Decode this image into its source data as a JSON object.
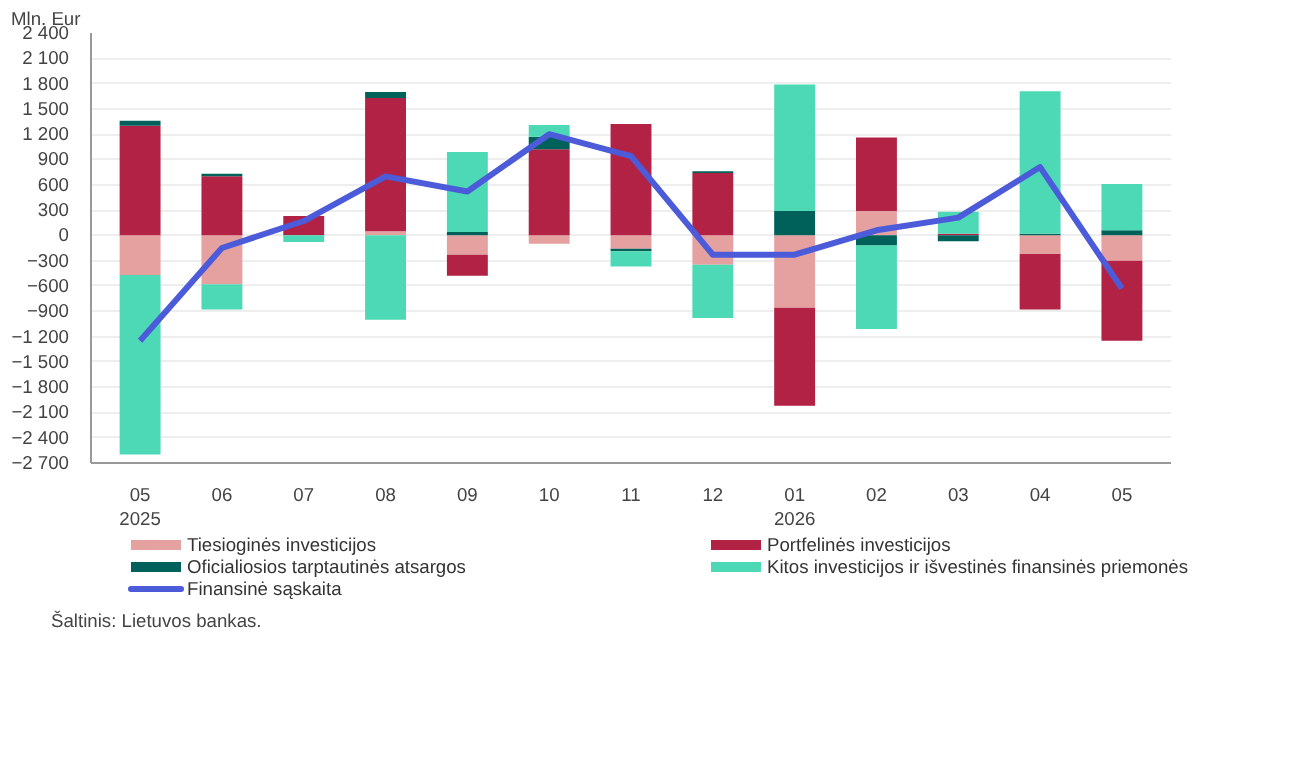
{
  "chart_data": {
    "type": "bar",
    "stacked": true,
    "ylabel": "Mln. Eur",
    "categories": [
      "05\n2025",
      "06",
      "07",
      "08",
      "09",
      "10",
      "11",
      "12",
      "01\n2026",
      "02",
      "03",
      "04",
      "05"
    ],
    "series": [
      {
        "name": "Tiesioginės investicijos",
        "color": "#e5a0a0",
        "values": [
          -470,
          -580,
          0,
          50,
          -230,
          -100,
          -160,
          -350,
          -860,
          290,
          0,
          -220,
          -300
        ]
      },
      {
        "name": "Portfelinės investicijos",
        "color": "#b22244",
        "values": [
          1300,
          700,
          230,
          1580,
          -250,
          1020,
          1320,
          740,
          -1160,
          870,
          20,
          -660,
          -950
        ]
      },
      {
        "name": "Oficialiosios tarptautinės atsargos",
        "color": "#00605a",
        "values": [
          60,
          30,
          0,
          70,
          40,
          150,
          -30,
          20,
          290,
          -120,
          -70,
          20,
          60
        ]
      },
      {
        "name": "Kitos investicijos ir išvestinės finansinės priemonės",
        "color": "#4dd9b5",
        "values": [
          -2130,
          -300,
          -80,
          -1000,
          950,
          140,
          -180,
          -630,
          1500,
          -990,
          260,
          1690,
          550
        ]
      },
      {
        "name": "Finansinė sąskaita",
        "type": "line",
        "color": "#4b5bd9",
        "values": [
          -1250,
          -150,
          170,
          700,
          520,
          1200,
          940,
          -230,
          -230,
          60,
          210,
          810,
          -630
        ]
      }
    ],
    "ylim": [
      -2700,
      2400
    ],
    "yticks": [
      {
        "value": -2700,
        "label": "−2 700"
      },
      {
        "value": -2400,
        "label": "−2 400"
      },
      {
        "value": -2100,
        "label": "−2 100"
      },
      {
        "value": -1800,
        "label": "−1 800"
      },
      {
        "value": -1500,
        "label": "−1 500"
      },
      {
        "value": -1200,
        "label": "−1 200"
      },
      {
        "value": -900,
        "label": "−900"
      },
      {
        "value": -600,
        "label": "−600"
      },
      {
        "value": -300,
        "label": "−300"
      },
      0,
      300,
      600,
      900,
      {
        "value": 1200,
        "label": "1 200"
      },
      {
        "value": 1500,
        "label": "1 500"
      },
      {
        "value": 1800,
        "label": "1 800"
      },
      {
        "value": 2100,
        "label": "2 100"
      },
      {
        "value": 2400,
        "label": "2 400"
      }
    ],
    "grid": "y",
    "legend": "bottom",
    "annotations": [
      "Šaltinis: Lietuvos bankas."
    ]
  }
}
